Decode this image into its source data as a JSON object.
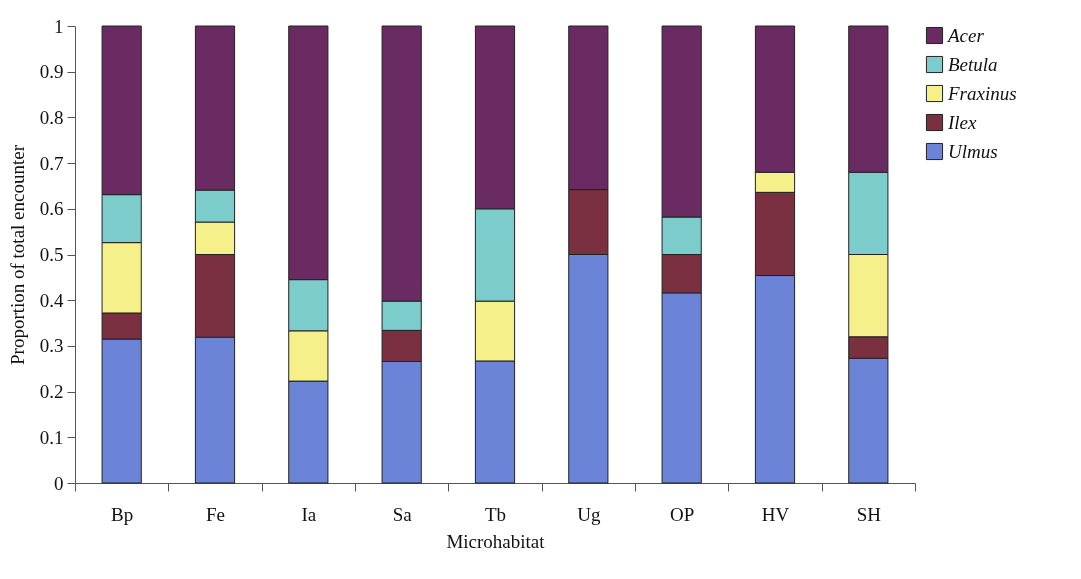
{
  "chart_data": {
    "type": "bar",
    "stacked": true,
    "xlabel": "Microhabitat",
    "ylabel": "Proportion of total encounter",
    "categories": [
      "Bp",
      "Fe",
      "Ia",
      "Sa",
      "Tb",
      "Ug",
      "OP",
      "HV",
      "SH"
    ],
    "series": [
      {
        "name": "Ulmus",
        "color": "#6b84d8",
        "values": [
          0.315,
          0.319,
          0.223,
          0.266,
          0.267,
          0.5,
          0.416,
          0.454,
          0.273
        ]
      },
      {
        "name": "Ilex",
        "color": "#7a3040",
        "values": [
          0.057,
          0.181,
          0,
          0.068,
          0,
          0.142,
          0.084,
          0.182,
          0.047
        ]
      },
      {
        "name": "Fraxinus",
        "color": "#f5f08a",
        "values": [
          0.154,
          0.071,
          0.11,
          0,
          0.131,
          0,
          0,
          0.044,
          0.18
        ]
      },
      {
        "name": "Betula",
        "color": "#7ccccc",
        "values": [
          0.105,
          0.07,
          0.112,
          0.064,
          0.202,
          0,
          0.082,
          0,
          0.18
        ]
      },
      {
        "name": "Acer",
        "color": "#6a2b63",
        "values": [
          0.369,
          0.359,
          0.555,
          0.602,
          0.4,
          0.358,
          0.418,
          0.32,
          0.32
        ]
      }
    ],
    "ylim": [
      0,
      1
    ],
    "yticks": [
      0,
      0.1,
      0.2,
      0.3,
      0.4,
      0.5,
      0.6,
      0.7,
      0.8,
      0.9,
      1
    ],
    "grid": false,
    "legend": "right"
  }
}
